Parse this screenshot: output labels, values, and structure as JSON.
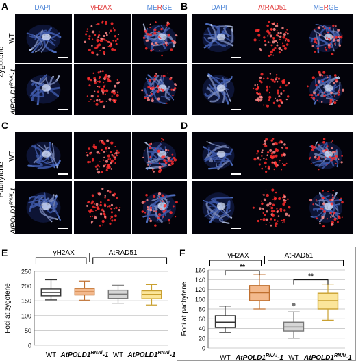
{
  "panels": {
    "A": {
      "letter": "A",
      "channels": [
        "DAPI",
        "γH2AX",
        "MERGE"
      ]
    },
    "B": {
      "letter": "B",
      "channels": [
        "DAPI",
        "AtRAD51",
        "MERGE"
      ]
    },
    "C": {
      "letter": "C"
    },
    "D": {
      "letter": "D"
    },
    "E": {
      "letter": "E"
    },
    "F": {
      "letter": "F"
    }
  },
  "stages": {
    "zygotene": "Zygotene",
    "pachytene": "Pachytene"
  },
  "rows": {
    "wt": "WT",
    "mutant_base": "AtPOLD1",
    "mutant_sup": "RNAi",
    "mutant_suffix": "-1"
  },
  "colors": {
    "dapi": "#4f87d8",
    "signal": "#e23c3c",
    "wt_box": "#ffffff",
    "mut_gh2ax_box": "#f3b98d",
    "mut_rad51_box": "#fbe59a",
    "rad51_wt_box": "#d6d6d6"
  },
  "chart_data": [
    {
      "type": "box",
      "panel": "E",
      "ylabel": "Foci at zygotene",
      "ylim": [
        0,
        250
      ],
      "yticks": [
        0,
        50,
        100,
        150,
        200,
        250
      ],
      "grid": true,
      "groups": [
        {
          "label": "γH2AX"
        },
        {
          "label": "AtRAD51"
        }
      ],
      "categories": [
        "WT",
        "AtPOLD1RNAi-1",
        "WT",
        "AtPOLD1RNAi-1"
      ],
      "boxes": [
        {
          "group": "γH2AX",
          "min": 153,
          "q1": 167,
          "median": 178,
          "q3": 190,
          "max": 221
        },
        {
          "group": "γH2AX",
          "min": 152,
          "q1": 170,
          "median": 180,
          "q3": 192,
          "max": 217
        },
        {
          "group": "AtRAD51",
          "min": 142,
          "q1": 158,
          "median": 173,
          "q3": 186,
          "max": 203
        },
        {
          "group": "AtRAD51",
          "min": 136,
          "q1": 157,
          "median": 172,
          "q3": 184,
          "max": 205
        }
      ]
    },
    {
      "type": "box",
      "panel": "F",
      "ylabel": "Foci at pachytene",
      "ylim": [
        0,
        160
      ],
      "yticks": [
        0,
        20,
        40,
        60,
        80,
        100,
        120,
        140,
        160
      ],
      "grid": true,
      "groups": [
        {
          "label": "γH2AX"
        },
        {
          "label": "AtRAD51"
        }
      ],
      "categories": [
        "WT",
        "AtPOLD1RNAi-1",
        "WT",
        "AtPOLD1RNAi-1"
      ],
      "boxes": [
        {
          "group": "γH2AX",
          "min": 32,
          "q1": 42,
          "median": 53,
          "q3": 66,
          "max": 86
        },
        {
          "group": "γH2AX",
          "min": 80,
          "q1": 97,
          "median": 113,
          "q3": 128,
          "max": 150
        },
        {
          "group": "AtRAD51",
          "min": 20,
          "q1": 35,
          "median": 43,
          "q3": 53,
          "max": 74,
          "outliers": [
            89
          ]
        },
        {
          "group": "AtRAD51",
          "min": 57,
          "q1": 80,
          "median": 97,
          "q3": 112,
          "max": 131
        }
      ],
      "significance": [
        {
          "between": [
            0,
            1
          ],
          "label": "**"
        },
        {
          "between": [
            2,
            3
          ],
          "label": "**"
        }
      ]
    }
  ]
}
